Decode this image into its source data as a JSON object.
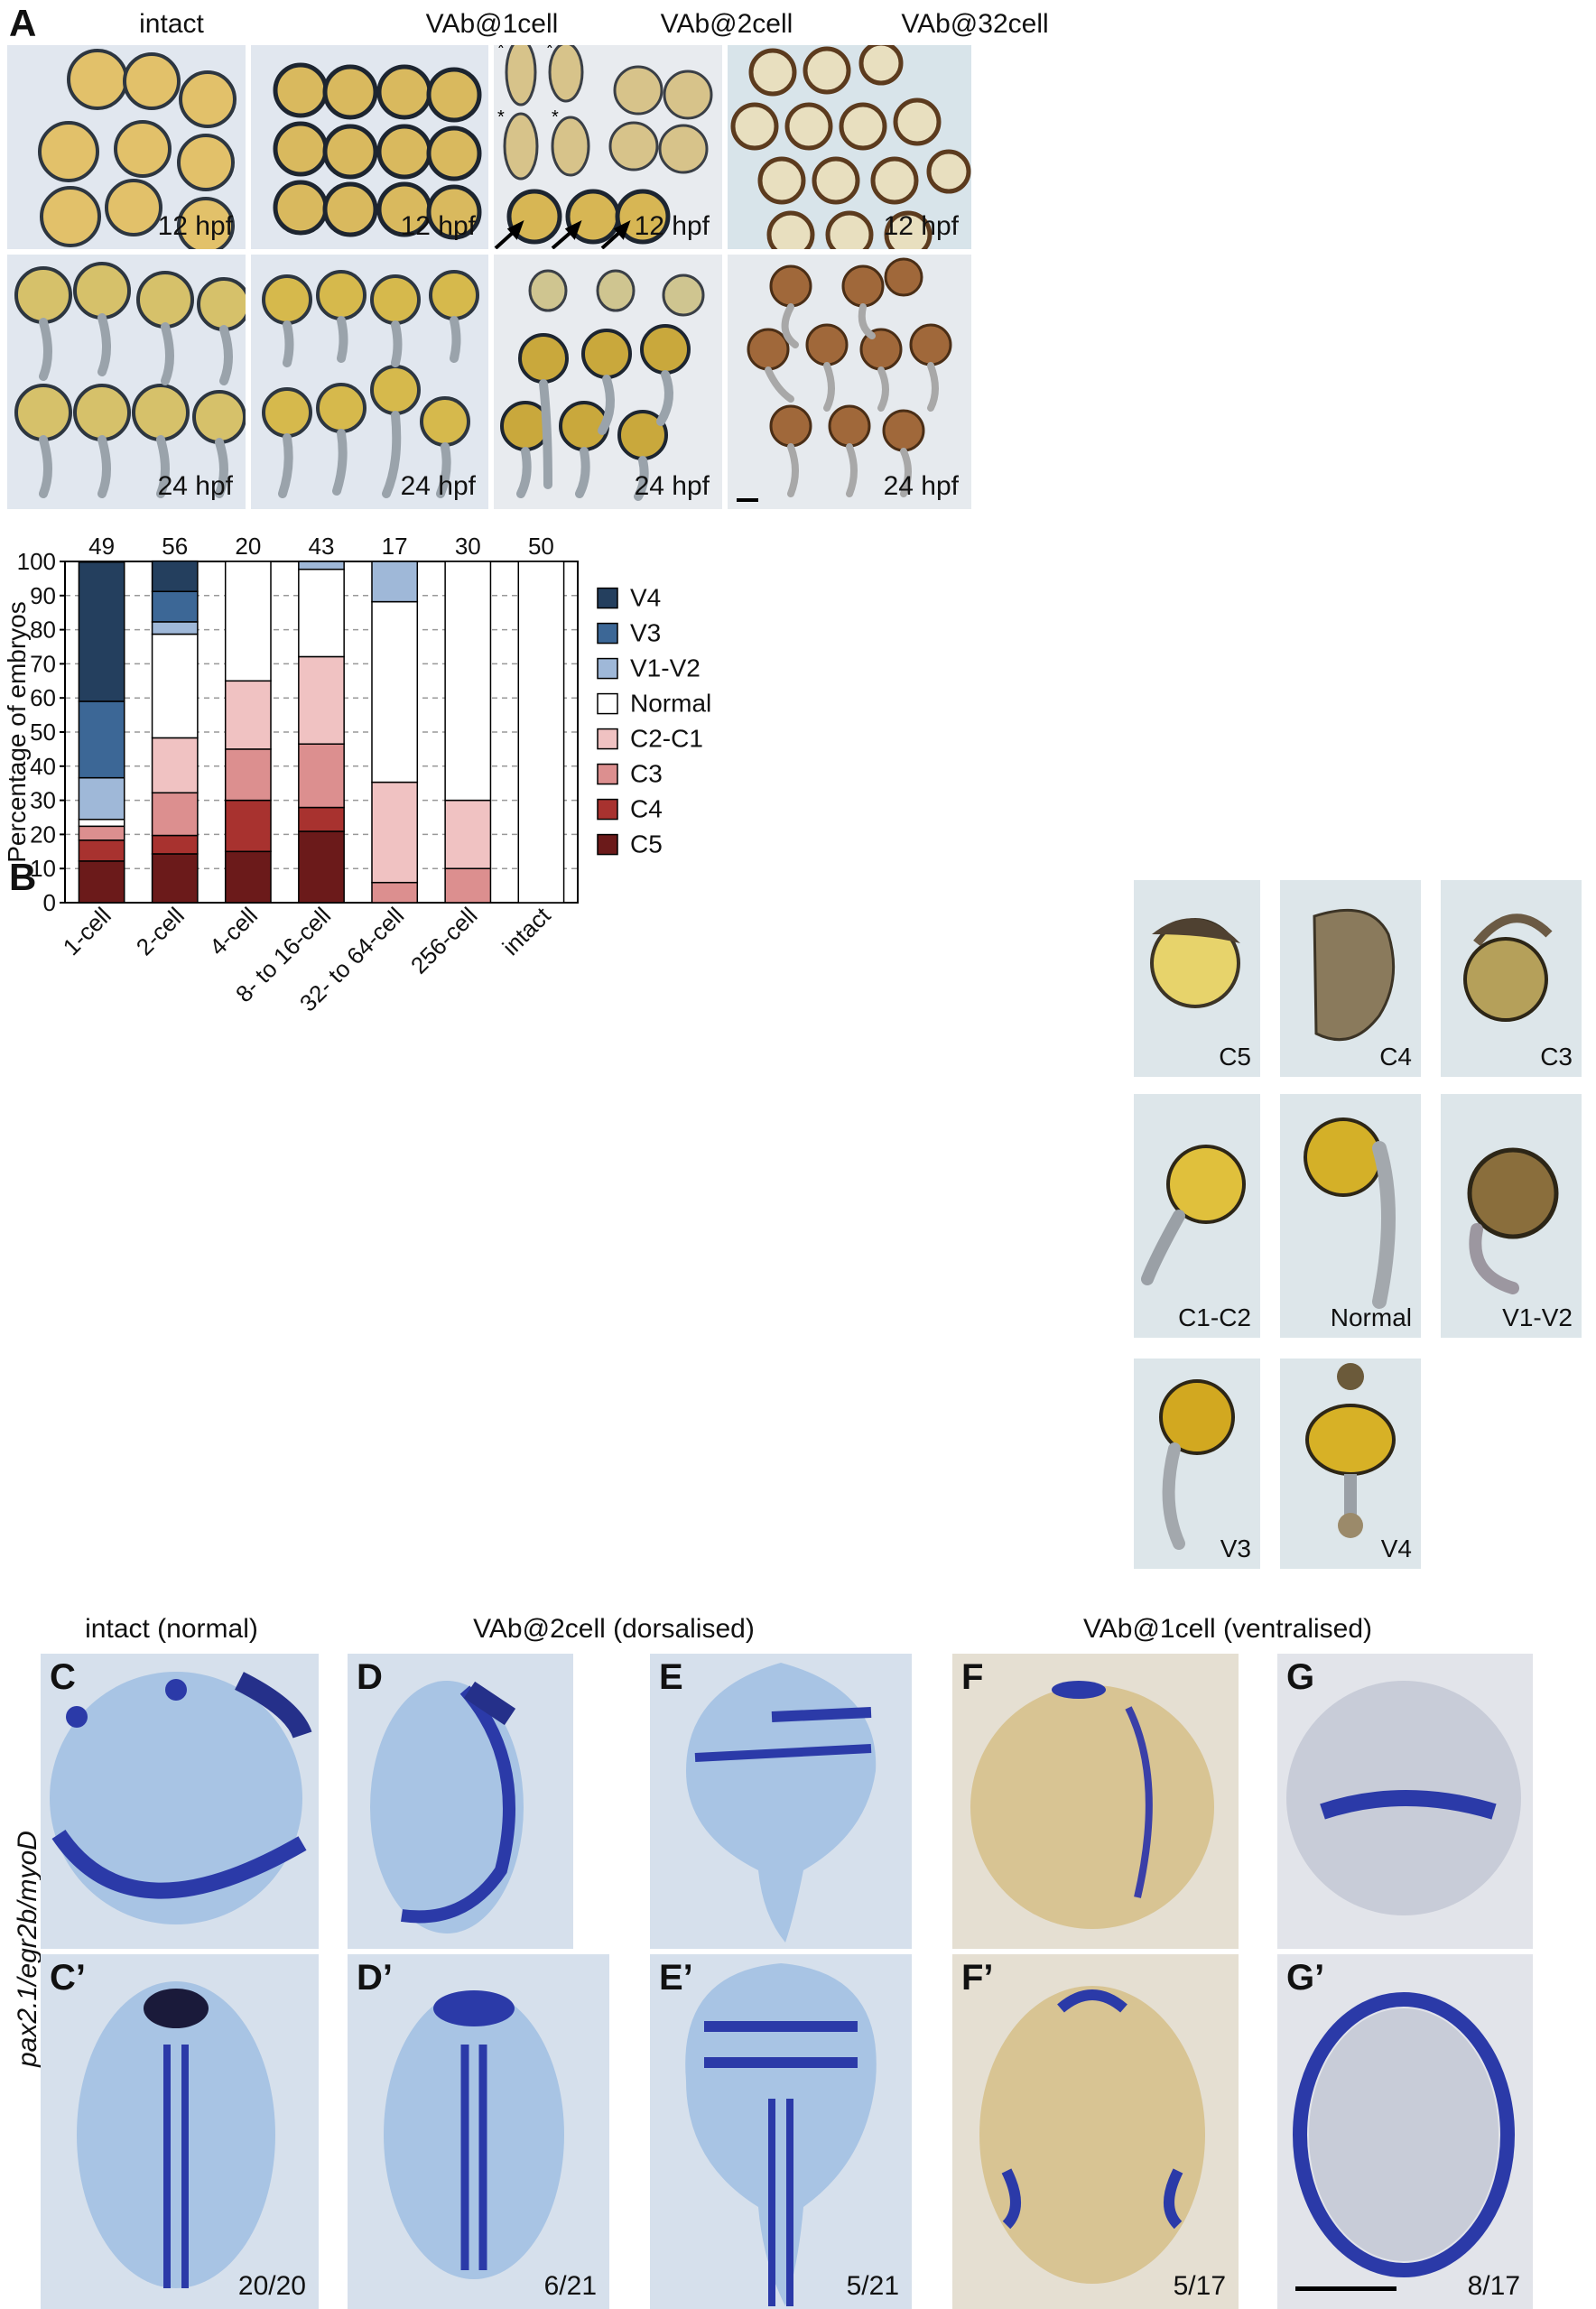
{
  "panelA": {
    "label": "A",
    "columns": [
      "intact",
      "VAb@1cell",
      "VAb@2cell",
      "VAb@32cell"
    ],
    "row_times": [
      "12 hpf",
      "24 hpf"
    ]
  },
  "panelB": {
    "label": "B",
    "thumbnails": [
      "C5",
      "C4",
      "C3",
      "C1-C2",
      "Normal",
      "V1-V2",
      "V3",
      "V4"
    ]
  },
  "chart_data": {
    "type": "bar",
    "stacked": true,
    "categories": [
      "1-cell",
      "2-cell",
      "4-cell",
      "8- to 16-cell",
      "32- to 64-cell",
      "256-cell",
      "intact"
    ],
    "n_labels": [
      "49",
      "56",
      "20",
      "43",
      "17",
      "30",
      "50"
    ],
    "ylabel": "Percentage of embryos",
    "ylim": [
      0,
      100
    ],
    "yticks": [
      0,
      10,
      20,
      30,
      40,
      50,
      60,
      70,
      80,
      90,
      100
    ],
    "grid": "horizontal dashed",
    "legend_position": "right",
    "series": [
      {
        "name": "C5",
        "color": "#6b1a1a",
        "values": [
          12.2,
          14.3,
          15,
          20.9,
          0,
          0,
          0
        ]
      },
      {
        "name": "C4",
        "color": "#a8322f",
        "values": [
          6.1,
          5.4,
          15,
          7.0,
          0,
          0,
          0
        ]
      },
      {
        "name": "C3",
        "color": "#dc8f8f",
        "values": [
          4.1,
          12.5,
          15,
          18.6,
          5.9,
          10,
          0
        ]
      },
      {
        "name": "C2-C1",
        "color": "#f0c2c2",
        "values": [
          0,
          16.1,
          20,
          25.6,
          29.4,
          20,
          0
        ]
      },
      {
        "name": "Normal",
        "color": "#ffffff",
        "values": [
          2.0,
          30.4,
          35,
          25.6,
          52.9,
          70,
          100
        ]
      },
      {
        "name": "V1-V2",
        "color": "#9fb8d8",
        "values": [
          12.2,
          3.6,
          0,
          2.3,
          11.8,
          0,
          0
        ]
      },
      {
        "name": "V3",
        "color": "#3c6796",
        "values": [
          22.4,
          8.9,
          0,
          0,
          0,
          0,
          0
        ]
      },
      {
        "name": "V4",
        "color": "#243f5e",
        "values": [
          40.8,
          8.9,
          0,
          0,
          0,
          0,
          0
        ]
      }
    ],
    "legend_order": [
      "V4",
      "V3",
      "V1-V2",
      "Normal",
      "C2-C1",
      "C3",
      "C4",
      "C5"
    ]
  },
  "panelC_G": {
    "group_titles": [
      "intact (normal)",
      "VAb@2cell (dorsalised)",
      "VAb@1cell (ventralised)"
    ],
    "side_label": "pax2.1/egr2b/myoD",
    "top_labels": [
      "C",
      "D",
      "E",
      "F",
      "G"
    ],
    "bottom_labels": [
      "C’",
      "D’",
      "E’",
      "F’",
      "G’"
    ],
    "counts": [
      "20/20",
      "6/21",
      "5/21",
      "5/17",
      "8/17"
    ]
  }
}
